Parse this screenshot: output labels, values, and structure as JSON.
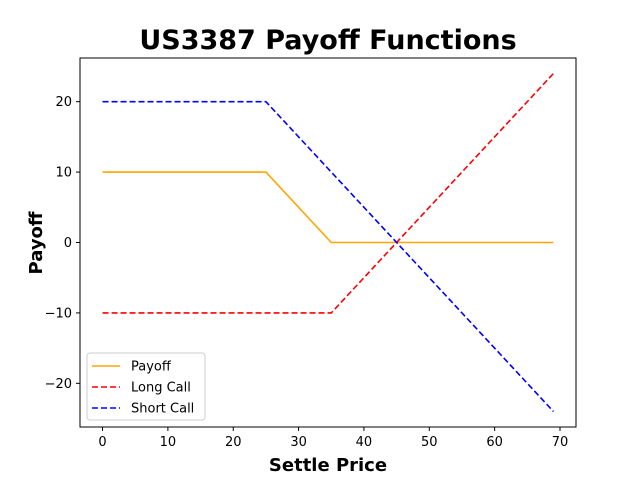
{
  "chart_data": {
    "type": "line",
    "title": "US3387 Payoff Functions",
    "xlabel": "Settle Price",
    "ylabel": "Payoff",
    "xlim": [
      -3.45,
      72.45
    ],
    "ylim": [
      -26.2,
      26.2
    ],
    "xticks": [
      0,
      10,
      20,
      30,
      40,
      50,
      60,
      70
    ],
    "yticks": [
      -20,
      -10,
      0,
      10,
      20
    ],
    "xtick_labels": [
      "0",
      "10",
      "20",
      "30",
      "40",
      "50",
      "60",
      "70"
    ],
    "ytick_labels": [
      "−20",
      "−10",
      "0",
      "10",
      "20"
    ],
    "grid": false,
    "legend_position": "lower-left",
    "series": [
      {
        "name": "Payoff",
        "color": "#ffa500",
        "style": "solid",
        "x": [
          0,
          25,
          35,
          69
        ],
        "y": [
          10,
          10,
          0,
          0
        ]
      },
      {
        "name": "Long Call",
        "color": "#ff0000",
        "style": "dashed",
        "x": [
          0,
          35,
          69
        ],
        "y": [
          -10,
          -10,
          24
        ]
      },
      {
        "name": "Short Call",
        "color": "#0000ff",
        "style": "dashed",
        "x": [
          0,
          25,
          69
        ],
        "y": [
          20,
          20,
          -24
        ]
      }
    ]
  }
}
